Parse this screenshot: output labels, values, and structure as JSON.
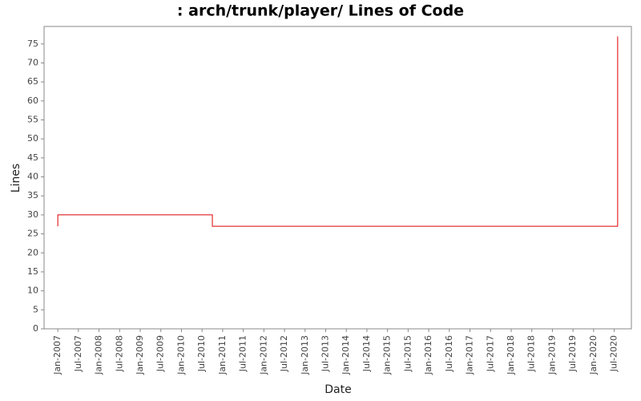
{
  "chart_data": {
    "type": "line",
    "title": ": arch/trunk/player/ Lines of Code",
    "x_label": "Date",
    "y_label": "Lines",
    "x": [
      "2007-01",
      "2007-01",
      "2010-10",
      "2010-10",
      "2020-08",
      "2020-08"
    ],
    "series": [
      {
        "name": "Lines",
        "color": "#dd0000",
        "values": [
          27,
          30,
          30,
          27,
          27,
          77
        ]
      }
    ],
    "xlim": [
      "2006-09",
      "2020-12"
    ],
    "xticks": [
      {
        "value": "2007-01",
        "label": "Jan-2007"
      },
      {
        "value": "2007-07",
        "label": "Jul-2007"
      },
      {
        "value": "2008-01",
        "label": "Jan-2008"
      },
      {
        "value": "2008-07",
        "label": "Jul-2008"
      },
      {
        "value": "2009-01",
        "label": "Jan-2009"
      },
      {
        "value": "2009-07",
        "label": "Jul-2009"
      },
      {
        "value": "2010-01",
        "label": "Jan-2010"
      },
      {
        "value": "2010-07",
        "label": "Jul-2010"
      },
      {
        "value": "2011-01",
        "label": "Jan-2011"
      },
      {
        "value": "2011-07",
        "label": "Jul-2011"
      },
      {
        "value": "2012-01",
        "label": "Jan-2012"
      },
      {
        "value": "2012-07",
        "label": "Jul-2012"
      },
      {
        "value": "2013-01",
        "label": "Jan-2013"
      },
      {
        "value": "2013-07",
        "label": "Jul-2013"
      },
      {
        "value": "2014-01",
        "label": "Jan-2014"
      },
      {
        "value": "2014-07",
        "label": "Jul-2014"
      },
      {
        "value": "2015-01",
        "label": "Jan-2015"
      },
      {
        "value": "2015-07",
        "label": "Jul-2015"
      },
      {
        "value": "2016-01",
        "label": "Jan-2016"
      },
      {
        "value": "2016-07",
        "label": "Jul-2016"
      },
      {
        "value": "2017-01",
        "label": "Jan-2017"
      },
      {
        "value": "2017-07",
        "label": "Jul-2017"
      },
      {
        "value": "2018-01",
        "label": "Jan-2018"
      },
      {
        "value": "2018-07",
        "label": "Jul-2018"
      },
      {
        "value": "2019-01",
        "label": "Jan-2019"
      },
      {
        "value": "2019-07",
        "label": "Jul-2019"
      },
      {
        "value": "2020-01",
        "label": "Jan-2020"
      },
      {
        "value": "2020-07",
        "label": "Jul-2020"
      }
    ],
    "ylim": [
      0,
      79.6
    ],
    "yticks": [
      0,
      5,
      10,
      15,
      20,
      25,
      30,
      35,
      40,
      45,
      50,
      55,
      60,
      65,
      70,
      75
    ],
    "grid": false
  }
}
